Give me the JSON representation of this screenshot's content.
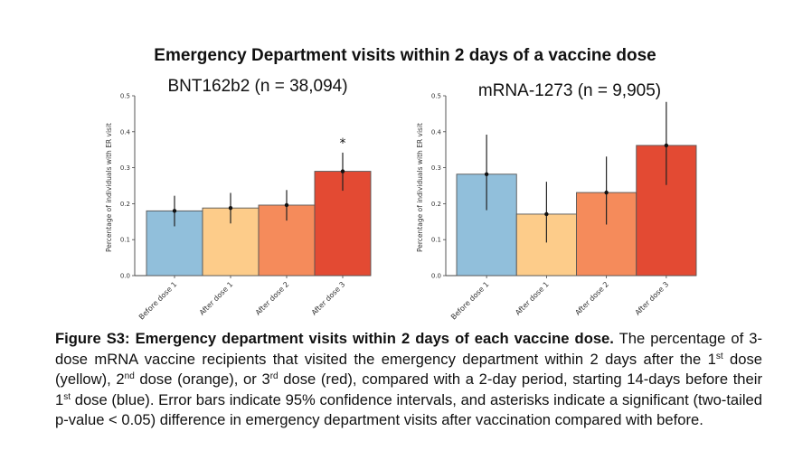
{
  "figure": {
    "suptitle": "Emergency Department visits within 2 days of a vaccine dose"
  },
  "chart_data": [
    {
      "type": "bar",
      "title": "BNT162b2 (n = 38,094)",
      "xlabel": "",
      "ylabel": "Percentage of individuals with ER visit",
      "ylim": [
        0,
        0.5
      ],
      "yticks": [
        "0.0",
        "0.1",
        "0.2",
        "0.3",
        "0.4",
        "0.5"
      ],
      "ytick_values": [
        0,
        0.1,
        0.2,
        0.3,
        0.4,
        0.5
      ],
      "categories": [
        "Before dose 1",
        "After dose 1",
        "After dose 2",
        "After dose 3"
      ],
      "values": [
        0.18,
        0.188,
        0.196,
        0.29
      ],
      "ci_low": [
        0.137,
        0.145,
        0.153,
        0.236
      ],
      "ci_high": [
        0.222,
        0.23,
        0.238,
        0.342
      ],
      "significant": [
        false,
        false,
        false,
        true
      ],
      "significance_marker": "*",
      "colors": [
        "#91bfdb",
        "#fdcc8a",
        "#f58b5b",
        "#e34a33"
      ],
      "grid": false
    },
    {
      "type": "bar",
      "title": "mRNA-1273 (n = 9,905)",
      "xlabel": "",
      "ylabel": "Percentage of individuals with ER visit",
      "ylim": [
        0,
        0.5
      ],
      "yticks": [
        "0.0",
        "0.1",
        "0.2",
        "0.3",
        "0.4",
        "0.5"
      ],
      "ytick_values": [
        0,
        0.1,
        0.2,
        0.3,
        0.4,
        0.5
      ],
      "categories": [
        "Before dose 1",
        "After dose 1",
        "After dose 2",
        "After dose 3"
      ],
      "values": [
        0.282,
        0.171,
        0.231,
        0.362
      ],
      "ci_low": [
        0.182,
        0.092,
        0.142,
        0.252
      ],
      "ci_high": [
        0.392,
        0.261,
        0.331,
        0.483
      ],
      "significant": [
        false,
        false,
        false,
        false
      ],
      "significance_marker": "*",
      "colors": [
        "#91bfdb",
        "#fdcc8a",
        "#f58b5b",
        "#e34a33"
      ],
      "grid": false
    }
  ],
  "caption": {
    "bold_lead": "Figure S3: Emergency department visits within 2 days of each vaccine dose.",
    "t1": " The percentage of 3-dose mRNA vaccine recipients that visited the emergency department within 2 days after the 1",
    "s1": "st",
    "t2": " dose (yellow), 2",
    "s2": "nd",
    "t3": " dose (orange), or 3",
    "s3": "rd",
    "t4": " dose (red), compared with a 2-day period, starting 14-days before their 1",
    "s4": "st",
    "t5": " dose (blue). Error bars indicate 95% confidence intervals, and asterisks indicate a significant (two-tailed p-value < 0.05) difference in emergency department visits after vaccination compared with before."
  }
}
